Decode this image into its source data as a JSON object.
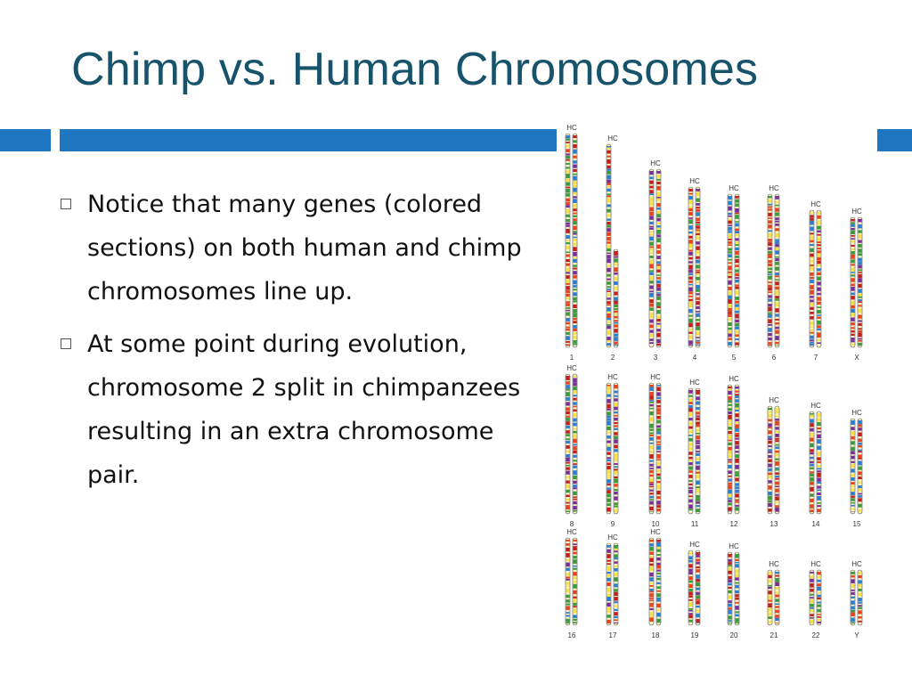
{
  "slide": {
    "title": "Chimp vs. Human Chromosomes",
    "bullets": [
      "Notice that many genes (colored sections) on both human and chimp chromosomes line up.",
      "At some point during evolution, chromosome 2 split in chimpanzees resulting in an extra chromosome pair."
    ]
  },
  "colors": {
    "title": "#17536b",
    "accent_bar": "#1f77c2",
    "band_colors": [
      "#e8431c",
      "#f6e04a",
      "#3a9a3c",
      "#2b7fd0",
      "#7a2d9b",
      "#c41e1e"
    ]
  },
  "karyotype": {
    "pair_label": "HC",
    "rows": [
      [
        "1",
        "2",
        "3",
        "4",
        "5",
        "6",
        "7",
        "X"
      ],
      [
        "8",
        "9",
        "10",
        "11",
        "12",
        "13",
        "14",
        "15"
      ],
      [
        "16",
        "17",
        "18",
        "19",
        "20",
        "21",
        "22",
        "Y"
      ]
    ]
  }
}
